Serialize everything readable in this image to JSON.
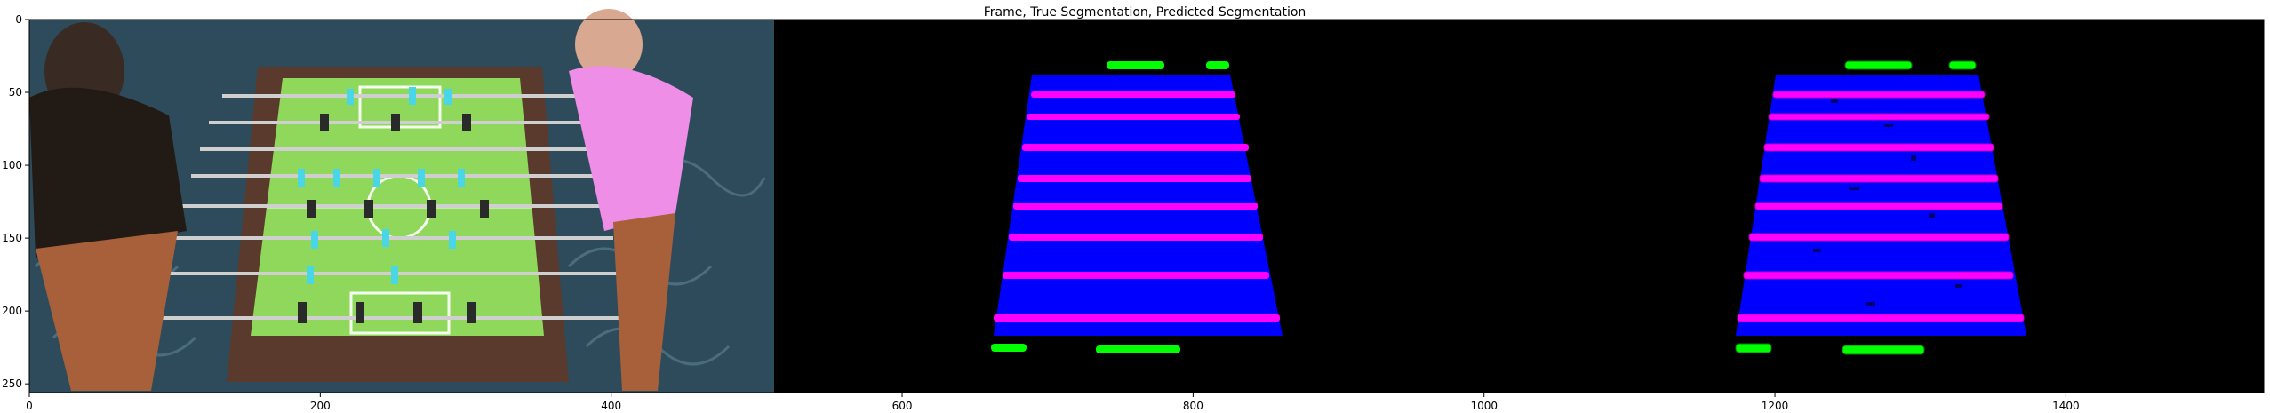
{
  "figure": {
    "title": "Frame, True Segmentation, Predicted Segmentation"
  },
  "axes": {
    "x_ticks": [
      0,
      200,
      400,
      600,
      800,
      1000,
      1200,
      1400
    ],
    "y_ticks": [
      0,
      50,
      100,
      150,
      200,
      250
    ],
    "x_range": [
      0,
      1536
    ],
    "y_range": [
      256,
      0
    ]
  },
  "colors": {
    "field_green": "#8ed85a",
    "table_wood": "#5a3a2a",
    "carpet": "#2a4a5a",
    "mask_blue": "#0000ff",
    "mask_magenta": "#ff00ff",
    "mask_green": "#00ff00",
    "background_black": "#000000"
  }
}
